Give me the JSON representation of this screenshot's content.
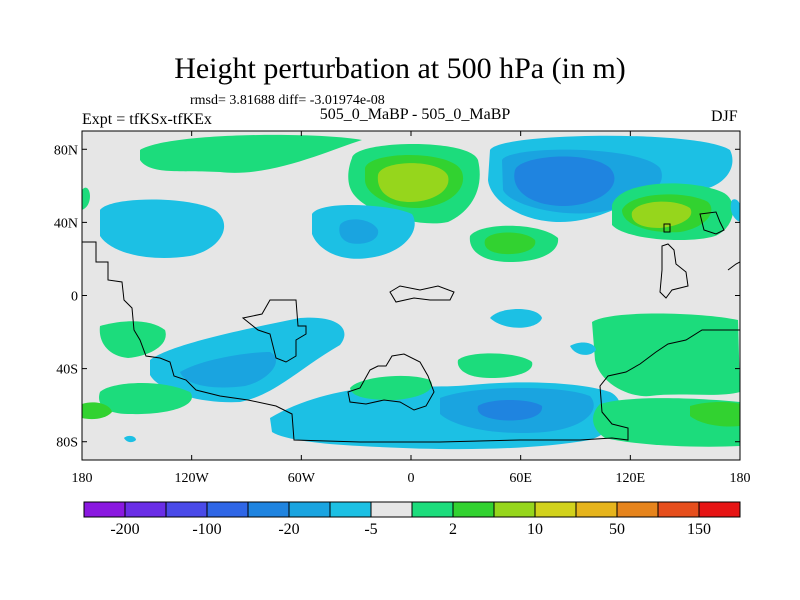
{
  "title": "Height perturbation at 500 hPa (in m)",
  "stats": "rmsd= 3.81688 diff= -3.01974e-08",
  "left_label": "Expt = tfKSx-tfKEx",
  "center_label": "505_0_MaBP - 505_0_MaBP",
  "right_label": "DJF",
  "lat_ticks": [
    {
      "label": "80N",
      "value": 80
    },
    {
      "label": "40N",
      "value": 40
    },
    {
      "label": "0",
      "value": 0
    },
    {
      "label": "40S",
      "value": -40
    },
    {
      "label": "80S",
      "value": -80
    }
  ],
  "lon_ticks": [
    {
      "label": "180",
      "value": -180
    },
    {
      "label": "120W",
      "value": -120
    },
    {
      "label": "60W",
      "value": -60
    },
    {
      "label": "0",
      "value": 0
    },
    {
      "label": "60E",
      "value": 60
    },
    {
      "label": "120E",
      "value": 120
    },
    {
      "label": "180",
      "value": 180
    }
  ],
  "colorbar": {
    "colors": [
      "#8a18e0",
      "#6a2ee6",
      "#4a4ae8",
      "#2f66e6",
      "#1f84e0",
      "#1aa4e0",
      "#1cc0e4",
      "#e6e6e6",
      "#1cdc7c",
      "#32d230",
      "#96d61c",
      "#d2d21c",
      "#e6b41c",
      "#e6841c",
      "#e64e1c",
      "#e61414"
    ],
    "labels": [
      {
        "text": "-200",
        "boundary": 1
      },
      {
        "text": "-100",
        "boundary": 3
      },
      {
        "text": "-20",
        "boundary": 5
      },
      {
        "text": "-5",
        "boundary": 7
      },
      {
        "text": "2",
        "boundary": 9
      },
      {
        "text": "10",
        "boundary": 11
      },
      {
        "text": "50",
        "boundary": 13
      },
      {
        "text": "150",
        "boundary": 15
      }
    ]
  }
}
